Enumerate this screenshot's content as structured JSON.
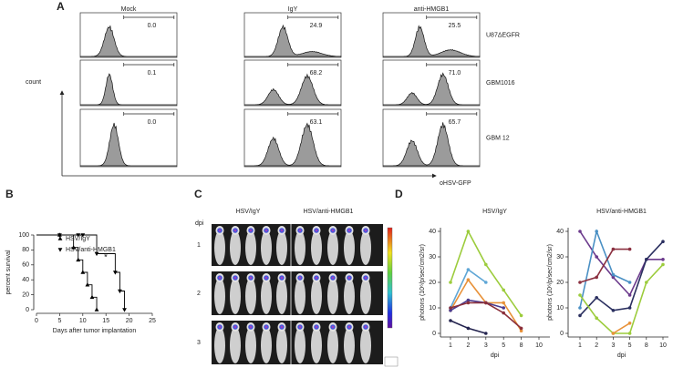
{
  "panel_labels": [
    "A",
    "B",
    "C",
    "D"
  ],
  "panel_a": {
    "column_titles": [
      "Mock",
      "IgY",
      "anti-HMGB1"
    ],
    "row_labels": [
      "U87ΔEGFR",
      "GBM1016",
      "GBM 12"
    ],
    "values": [
      [
        "0.0",
        "24.9",
        "25.5"
      ],
      [
        "0.1",
        "68.2",
        "71.0"
      ],
      [
        "0.0",
        "63.1",
        "65.7"
      ]
    ],
    "y_label": "count",
    "x_label": "oHSV-GFP"
  },
  "panel_c": {
    "group_titles": [
      "HSV/IgY",
      "HSV/anti-HMGB1"
    ],
    "row_title": "dpi",
    "row_labels": [
      "1",
      "2",
      "3"
    ]
  },
  "chart_data": [
    {
      "type": "step",
      "ylabel": "percent survival",
      "xlabel": "Days after tumor implantation",
      "xlim": [
        0,
        25
      ],
      "ylim": [
        0,
        100
      ],
      "xticks": [
        0,
        5,
        10,
        15,
        20,
        25
      ],
      "yticks": [
        0,
        20,
        40,
        60,
        80,
        100
      ],
      "annotation": "*",
      "series": [
        {
          "name": "HSV/IgY",
          "marker": "triangle-up",
          "color": "#000000",
          "x": [
            0,
            5,
            8,
            9,
            10,
            11,
            12,
            13
          ],
          "values": [
            100,
            100,
            83.3,
            66.7,
            50,
            33.3,
            16.7,
            0
          ]
        },
        {
          "name": "HSV/anti-HMGB1",
          "marker": "triangle-down",
          "color": "#000000",
          "x": [
            0,
            5,
            9,
            10,
            13,
            17,
            18,
            19
          ],
          "values": [
            100,
            100,
            100,
            100,
            75,
            50,
            25,
            0
          ]
        }
      ]
    },
    {
      "type": "line",
      "title": "HSV/IgY",
      "xlabel": "dpi",
      "ylabel": "photons (10⁶/p/sec/cm2/sr)",
      "categories": [
        "1",
        "2",
        "3",
        "5",
        "8",
        "10"
      ],
      "ylim": [
        0,
        40
      ],
      "yticks": [
        0,
        10,
        20,
        30,
        40
      ],
      "series": [
        {
          "color": "#9ccc3c",
          "values": [
            20,
            40,
            27,
            17,
            7,
            null
          ]
        },
        {
          "color": "#5ea6d6",
          "values": [
            10,
            25,
            20,
            null,
            null,
            null
          ]
        },
        {
          "color": "#e8923a",
          "values": [
            9,
            21,
            12,
            12,
            1,
            null
          ]
        },
        {
          "color": "#4a3b8f",
          "values": [
            9,
            13,
            12,
            10,
            null,
            null
          ]
        },
        {
          "color": "#8b2f3a",
          "values": [
            10,
            12,
            12,
            8,
            2,
            null
          ]
        },
        {
          "color": "#24244f",
          "values": [
            5,
            2,
            0,
            null,
            null,
            null
          ]
        }
      ]
    },
    {
      "type": "line",
      "title": "HSV/anti-HMGB1",
      "xlabel": "dpi",
      "ylabel": "photons (10⁶/p/sec/cm2/sr)",
      "categories": [
        "1",
        "2",
        "3",
        "5",
        "8",
        "10"
      ],
      "ylim": [
        0,
        40
      ],
      "yticks": [
        0,
        10,
        20,
        30,
        40
      ],
      "series": [
        {
          "color": "#6b3a8c",
          "values": [
            40,
            30,
            22,
            15,
            29,
            29
          ]
        },
        {
          "color": "#4a90c4",
          "values": [
            10,
            40,
            23,
            20,
            null,
            null
          ]
        },
        {
          "color": "#8b3040",
          "values": [
            20,
            22,
            33,
            33,
            null,
            null
          ]
        },
        {
          "color": "#2b3060",
          "values": [
            7,
            14,
            9,
            10,
            29,
            36
          ]
        },
        {
          "color": "#9ccc3c",
          "values": [
            15,
            6,
            0,
            0,
            20,
            27
          ]
        },
        {
          "color": "#e8923a",
          "values": [
            null,
            null,
            0,
            4,
            null,
            null
          ]
        }
      ]
    }
  ]
}
